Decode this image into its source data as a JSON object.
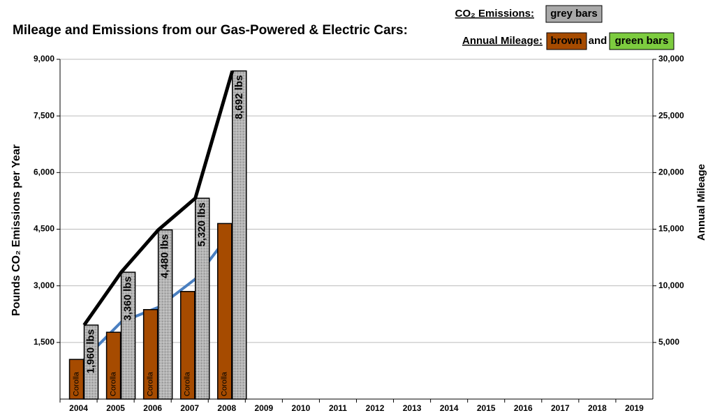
{
  "chart_data": {
    "type": "bar",
    "title": "Mileage and Emissions from our Gas-Powered & Electric Cars:",
    "legend": {
      "co2_label": "CO₂ Emissions:",
      "co2_box": "grey bars",
      "mileage_label": "Annual Mileage:",
      "brown_box": "brown",
      "and": "and",
      "green_box": "green bars",
      "green_color": "#7dcc3f"
    },
    "y_label": "Pounds CO₂ Emissions per Year",
    "y2_label": "Annual Mileage",
    "categories": [
      "2004",
      "2005",
      "2006",
      "2007",
      "2008",
      "2009",
      "2010",
      "2011",
      "2012",
      "2013",
      "2014",
      "2015",
      "2016",
      "2017",
      "2018",
      "2019"
    ],
    "ylim": [
      0,
      9000
    ],
    "yticks": [
      {
        "value": 1500,
        "label": "1,500"
      },
      {
        "value": 3000,
        "label": "3,000"
      },
      {
        "value": 4500,
        "label": "4,500"
      },
      {
        "value": 6000,
        "label": "6,000"
      },
      {
        "value": 7500,
        "label": "7,500"
      },
      {
        "value": 9000,
        "label": "9,000"
      }
    ],
    "y2lim": [
      0,
      30000
    ],
    "y2ticks": [
      {
        "value": 5000,
        "label": "5,000"
      },
      {
        "value": 10000,
        "label": "10,000"
      },
      {
        "value": 15000,
        "label": "15,000"
      },
      {
        "value": 20000,
        "label": "20,000"
      },
      {
        "value": 25000,
        "label": "25,000"
      },
      {
        "value": 30000,
        "label": "30,000"
      }
    ],
    "grid": true,
    "series": [
      {
        "type": "bar",
        "color": "#a9a9a9",
        "values": [
          1960,
          3360,
          4480,
          5320,
          8692,
          null,
          null,
          null,
          null,
          null,
          null,
          null,
          null,
          null,
          null,
          null
        ],
        "value_labels": [
          "1,960 lbs",
          "3,360 lbs",
          "4,480 lbs",
          "5,320 lbs",
          "8,692 lbs",
          null,
          null,
          null,
          null,
          null,
          null,
          null,
          null,
          null,
          null,
          null
        ]
      },
      {
        "type": "bar",
        "axis": "y2",
        "color": "#a64b00",
        "bar_label": "Corolla",
        "values": [
          3500,
          5900,
          7900,
          9500,
          15500,
          null,
          null,
          null,
          null,
          null,
          null,
          null,
          null,
          null,
          null,
          null
        ]
      },
      {
        "type": "line",
        "axis": "y2",
        "color": "#4a7fc0",
        "values": [
          3500,
          6800,
          8100,
          10600,
          14900,
          null,
          null,
          null,
          null,
          null,
          null,
          null,
          null,
          null,
          null,
          null
        ]
      },
      {
        "type": "line",
        "color": "#000000",
        "values": [
          1960,
          3360,
          4480,
          5320,
          8692,
          null,
          null,
          null,
          null,
          null,
          null,
          null,
          null,
          null,
          null,
          null
        ]
      }
    ]
  }
}
